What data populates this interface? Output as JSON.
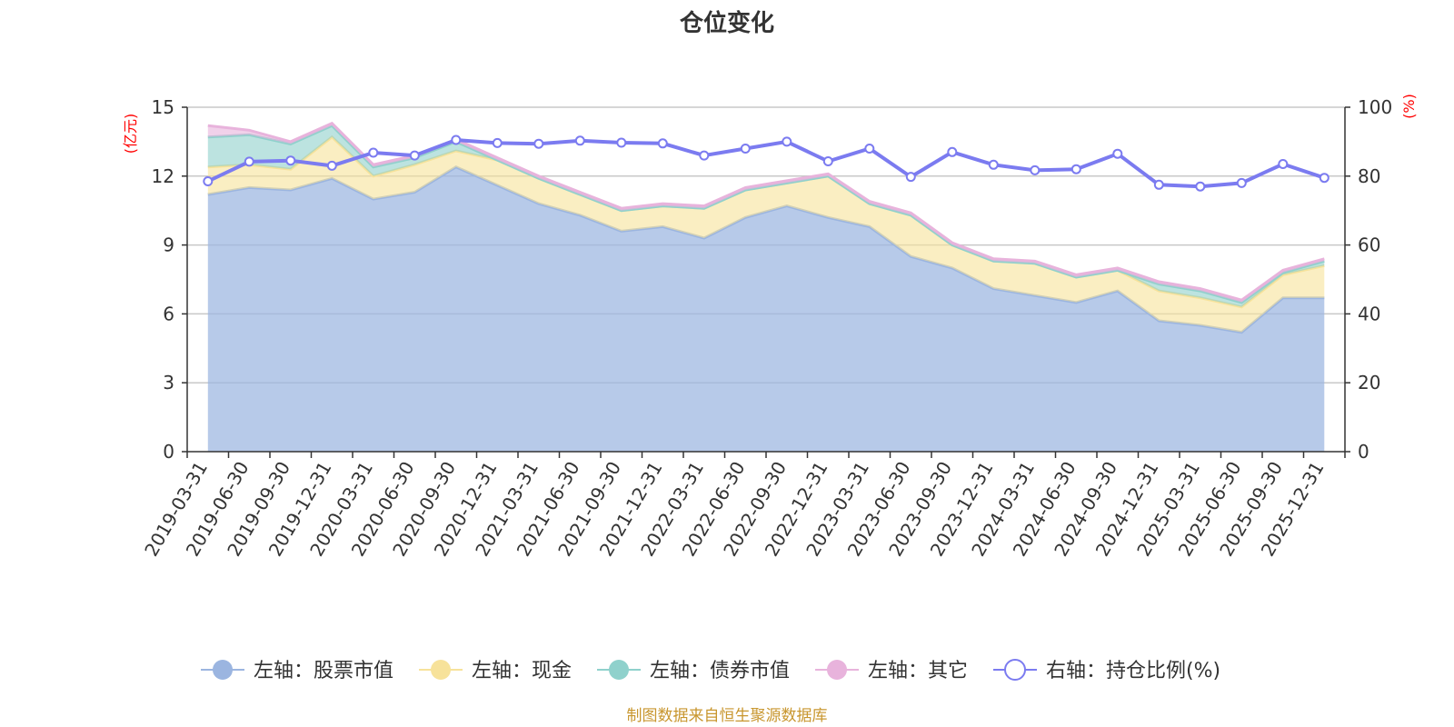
{
  "chart_data": {
    "type": "area",
    "title": "仓位变化",
    "left_unit": "(亿元)",
    "right_unit": "(%)",
    "source": "制图数据来自恒生聚源数据库",
    "categories": [
      "2019-03-31",
      "2019-06-30",
      "2019-09-30",
      "2019-12-31",
      "2020-03-31",
      "2020-06-30",
      "2020-09-30",
      "2020-12-31",
      "2021-03-31",
      "2021-06-30",
      "2021-09-30",
      "2021-12-31",
      "2022-03-31",
      "2022-06-30",
      "2022-09-30",
      "2022-12-31",
      "2023-03-31",
      "2023-06-30",
      "2023-09-30",
      "2023-12-31",
      "2024-03-31",
      "2024-06-30",
      "2024-09-30",
      "2024-12-31",
      "2025-03-31",
      "2025-06-30",
      "2025-09-30",
      "2025-12-31"
    ],
    "left_axis": {
      "min": 0,
      "max": 15,
      "ticks": [
        0,
        3,
        6,
        9,
        12,
        15
      ]
    },
    "right_axis": {
      "min": 0,
      "max": 100,
      "ticks": [
        0,
        20,
        40,
        60,
        80,
        100
      ]
    },
    "stacked_series": [
      {
        "name": "左轴：股票市值",
        "color": "#9bb5e0",
        "values": [
          11.2,
          11.5,
          11.4,
          11.9,
          11.0,
          11.3,
          12.4,
          11.6,
          10.8,
          10.3,
          9.6,
          9.8,
          9.3,
          10.2,
          10.7,
          10.2,
          9.8,
          8.5,
          8.0,
          7.1,
          6.8,
          6.5,
          7.0,
          5.7,
          5.5,
          5.2,
          6.7,
          6.7
        ]
      },
      {
        "name": "左轴：现金",
        "color": "#f7e29a",
        "values": [
          1.2,
          1.0,
          0.9,
          1.8,
          1.0,
          1.2,
          0.7,
          1.1,
          1.1,
          0.9,
          0.9,
          0.9,
          1.3,
          1.2,
          1.0,
          1.8,
          1.0,
          1.8,
          1.0,
          1.2,
          1.4,
          1.1,
          0.9,
          1.3,
          1.2,
          1.1,
          1.0,
          1.4
        ]
      },
      {
        "name": "左轴：债券市值",
        "color": "#8fd1cc",
        "values": [
          1.3,
          1.3,
          1.1,
          0.5,
          0.4,
          0.3,
          0.4,
          0,
          0,
          0,
          0,
          0,
          0,
          0,
          0,
          0,
          0,
          0,
          0,
          0,
          0,
          0,
          0,
          0.3,
          0.3,
          0.2,
          0.1,
          0.2
        ]
      },
      {
        "name": "左轴：其它",
        "color": "#e8b3dc",
        "values": [
          0.5,
          0.2,
          0.1,
          0.1,
          0.1,
          0.1,
          0.1,
          0.1,
          0.1,
          0.1,
          0.1,
          0.1,
          0.1,
          0.1,
          0.1,
          0.1,
          0.1,
          0.1,
          0.1,
          0.1,
          0.1,
          0.1,
          0.1,
          0.1,
          0.1,
          0.1,
          0.1,
          0.1
        ]
      }
    ],
    "line_series": {
      "name": "右轴：持仓比例(%)",
      "color": "#7b7bf0",
      "values": [
        78.5,
        84.2,
        84.5,
        83.0,
        86.8,
        86.0,
        90.5,
        89.6,
        89.4,
        90.3,
        89.7,
        89.5,
        86.0,
        88.0,
        90.0,
        84.3,
        88.0,
        79.8,
        87.0,
        83.3,
        81.7,
        82.0,
        86.5,
        77.5,
        77.0,
        78.0,
        83.5,
        79.5
      ]
    }
  }
}
